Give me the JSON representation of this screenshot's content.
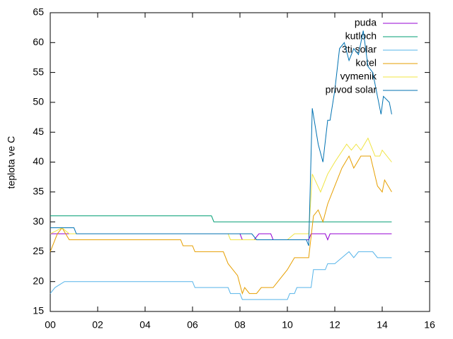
{
  "chart_data": {
    "type": "line",
    "ylabel": "teplota ve C",
    "xlim": [
      0,
      16
    ],
    "ylim": [
      15,
      65
    ],
    "xticks": [
      {
        "value": 0,
        "label": "00"
      },
      {
        "value": 2,
        "label": "02"
      },
      {
        "value": 4,
        "label": "04"
      },
      {
        "value": 6,
        "label": "06"
      },
      {
        "value": 8,
        "label": "08"
      },
      {
        "value": 10,
        "label": "10"
      },
      {
        "value": 12,
        "label": "12"
      },
      {
        "value": 14,
        "label": "14"
      },
      {
        "value": 16,
        "label": "16"
      }
    ],
    "yticks": [
      15,
      20,
      25,
      30,
      35,
      40,
      45,
      50,
      55,
      60,
      65
    ],
    "legend": "top-right",
    "series": [
      {
        "name": "puda",
        "color": "#9400d3",
        "x": [
          0,
          8,
          8.1,
          8.2,
          8.6,
          8.8,
          9.3,
          9.4,
          9.8,
          10.9,
          11,
          11.6,
          11.7,
          11.8,
          14.4
        ],
        "values": [
          28,
          28,
          27,
          27,
          27,
          28,
          28,
          27,
          27,
          27,
          28,
          28,
          27,
          28,
          28
        ]
      },
      {
        "name": "kutloch",
        "color": "#009e73",
        "x": [
          0,
          6.8,
          6.9,
          14.4
        ],
        "values": [
          31,
          31,
          30,
          30
        ]
      },
      {
        "name": "3ti solar",
        "color": "#56b4e9",
        "x": [
          0,
          0.2,
          0.6,
          6,
          6.1,
          7.5,
          7.6,
          8,
          8.1,
          10,
          10.1,
          10.3,
          10.4,
          11,
          11.1,
          11.6,
          11.7,
          12,
          12.3,
          12.6,
          12.8,
          13,
          13.6,
          13.8,
          14.4
        ],
        "values": [
          18,
          19,
          20,
          20,
          19,
          19,
          18,
          18,
          17,
          17,
          18,
          18,
          19,
          19,
          22,
          22,
          23,
          23,
          24,
          25,
          24,
          25,
          25,
          24,
          24
        ]
      },
      {
        "name": "kotel",
        "color": "#e69f00",
        "x": [
          0,
          0.3,
          0.5,
          0.8,
          5.5,
          5.6,
          6,
          6.1,
          7.3,
          7.5,
          7.9,
          8.1,
          8.2,
          8.4,
          8.7,
          8.9,
          9.4,
          9.6,
          10,
          10.3,
          10.9,
          11.1,
          11.3,
          11.5,
          11.7,
          12,
          12.3,
          12.6,
          12.8,
          13.1,
          13.5,
          13.8,
          14,
          14.1,
          14.4
        ],
        "values": [
          25,
          28,
          29,
          27,
          27,
          26,
          26,
          25,
          25,
          23,
          21,
          18,
          19,
          18,
          18,
          19,
          19,
          20,
          22,
          24,
          24,
          31,
          32,
          30,
          33,
          36,
          39,
          41,
          39,
          41,
          41,
          36,
          35,
          37,
          35
        ]
      },
      {
        "name": "vymenik",
        "color": "#f0e442",
        "x": [
          0,
          0.5,
          0.8,
          7.5,
          7.6,
          10,
          10.3,
          10.9,
          11.05,
          11.4,
          11.7,
          12,
          12.5,
          12.7,
          12.9,
          13.1,
          13.4,
          13.7,
          13.9,
          14,
          14.4
        ],
        "values": [
          28,
          29,
          28,
          28,
          27,
          27,
          28,
          28,
          38,
          35,
          38,
          40,
          43,
          42,
          43,
          42,
          44,
          41,
          41,
          42,
          40
        ]
      },
      {
        "name": "privod solar",
        "color": "#0072b2",
        "x": [
          0,
          1,
          1.1,
          8.5,
          8.7,
          10.8,
          10.9,
          11.05,
          11.3,
          11.5,
          11.7,
          11.8,
          12,
          12.2,
          12.4,
          12.6,
          12.8,
          13,
          13.2,
          13.4,
          13.6,
          13.8,
          13.95,
          14.05,
          14.3,
          14.4
        ],
        "values": [
          29,
          29,
          28,
          28,
          27,
          27,
          26,
          49,
          43,
          40,
          47,
          47,
          52,
          59,
          60,
          57,
          59,
          58,
          62,
          56,
          55,
          51,
          48,
          51,
          50,
          48
        ]
      }
    ]
  }
}
